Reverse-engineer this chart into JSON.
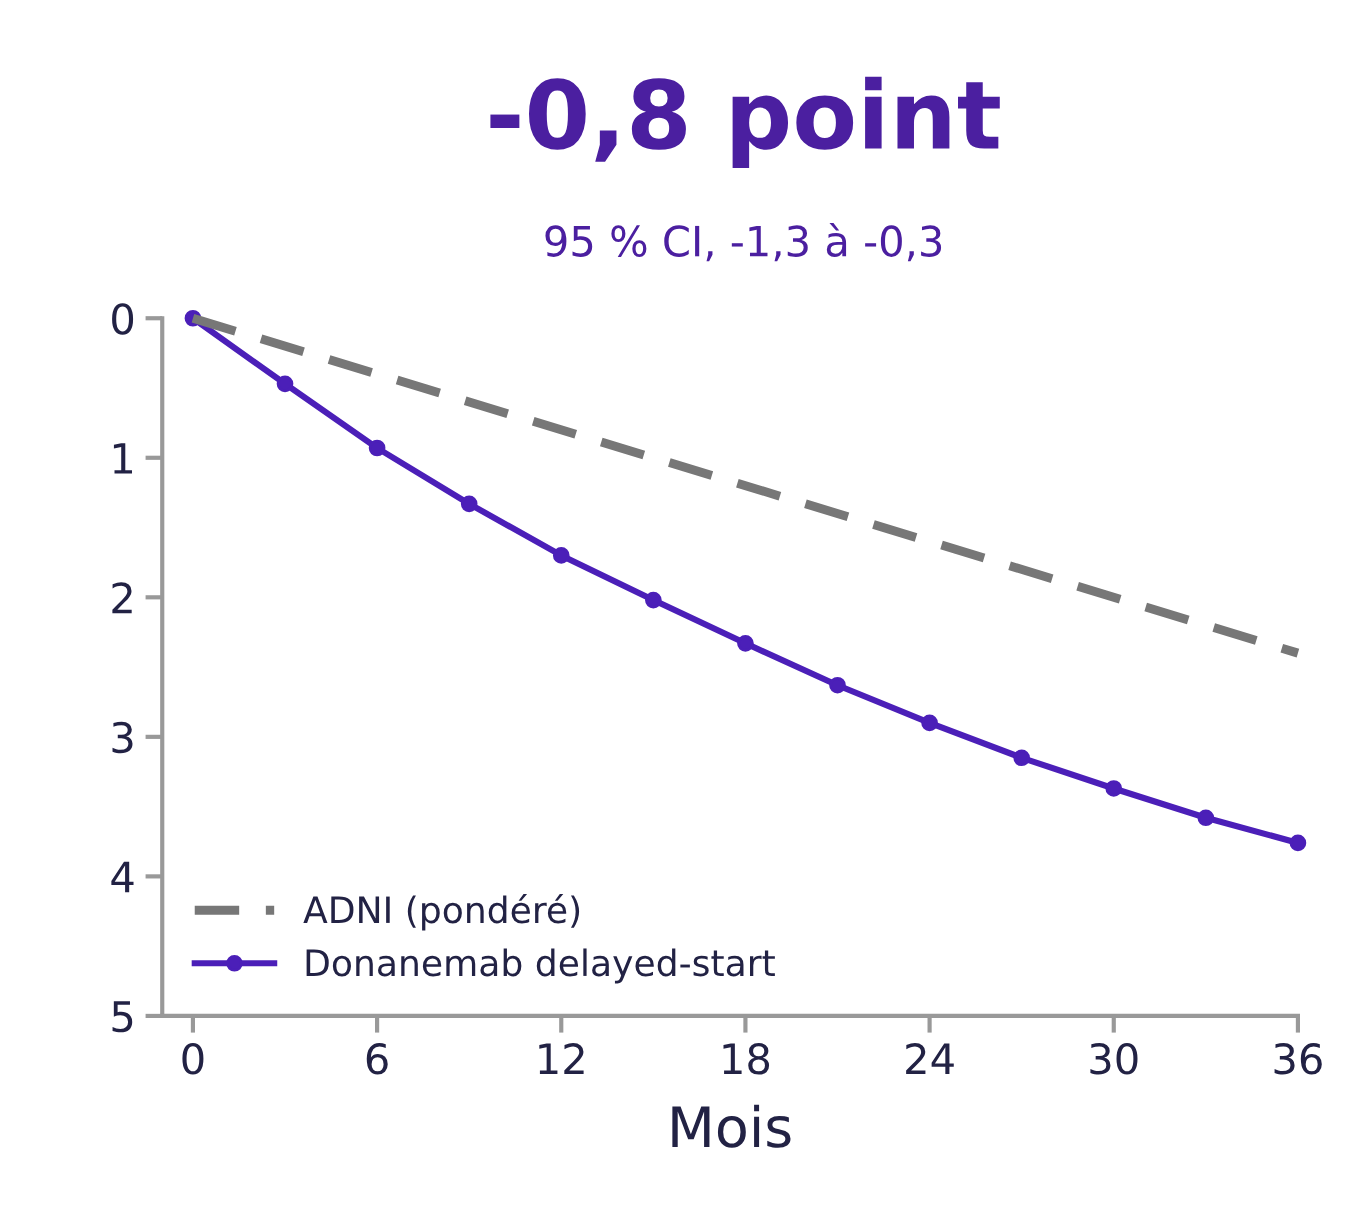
{
  "chart_data": {
    "type": "line",
    "title": "-0,8 point",
    "subtitle": "95 % CI, -1,3 à -0,3",
    "xlabel": "Mois",
    "x": [
      0,
      3,
      6,
      9,
      12,
      15,
      18,
      21,
      24,
      27,
      30,
      33,
      36
    ],
    "series": [
      {
        "name": "ADNI (pondéré)",
        "color": "#777777",
        "line_style": "dashed",
        "marker": "none",
        "x": [
          0,
          36
        ],
        "values": [
          0,
          2.4
        ]
      },
      {
        "name": "Donanemab delayed-start",
        "color": "#4b1fb8",
        "line_style": "solid",
        "marker": "circle",
        "values": [
          0,
          0.47,
          0.93,
          1.33,
          1.7,
          2.02,
          2.33,
          2.63,
          2.9,
          3.15,
          3.37,
          3.58,
          3.76
        ]
      }
    ],
    "xlim": [
      -1,
      36
    ],
    "ylim": [
      5,
      0
    ],
    "xticks": [
      0,
      6,
      12,
      18,
      24,
      30,
      36
    ],
    "yticks": [
      0,
      1,
      2,
      3,
      4,
      5
    ],
    "grid": false,
    "legend": "bottom left"
  }
}
